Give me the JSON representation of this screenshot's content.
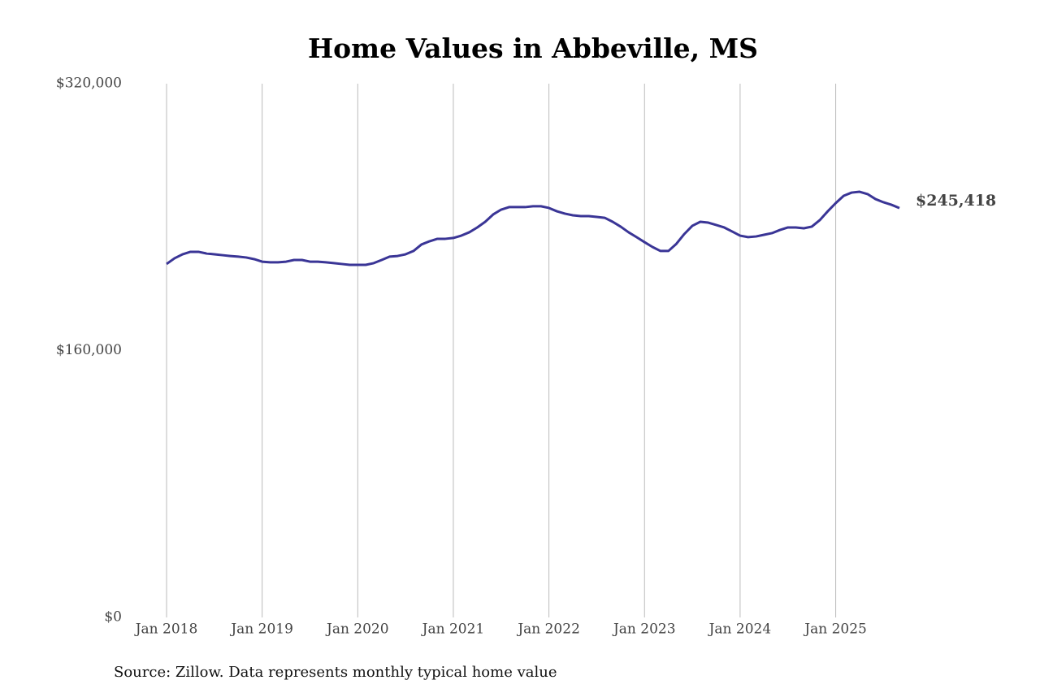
{
  "chart_data": {
    "type": "line",
    "title": "Home Values in Abbeville, MS",
    "source": "Source: Zillow. Data represents monthly typical home value",
    "x": [
      "2018-01",
      "2018-02",
      "2018-03",
      "2018-04",
      "2018-05",
      "2018-06",
      "2018-07",
      "2018-08",
      "2018-09",
      "2018-10",
      "2018-11",
      "2018-12",
      "2019-01",
      "2019-02",
      "2019-03",
      "2019-04",
      "2019-05",
      "2019-06",
      "2019-07",
      "2019-08",
      "2019-09",
      "2019-10",
      "2019-11",
      "2019-12",
      "2020-01",
      "2020-02",
      "2020-03",
      "2020-04",
      "2020-05",
      "2020-06",
      "2020-07",
      "2020-08",
      "2020-09",
      "2020-10",
      "2020-11",
      "2020-12",
      "2021-01",
      "2021-02",
      "2021-03",
      "2021-04",
      "2021-05",
      "2021-06",
      "2021-07",
      "2021-08",
      "2021-09",
      "2021-10",
      "2021-11",
      "2021-12",
      "2022-01",
      "2022-02",
      "2022-03",
      "2022-04",
      "2022-05",
      "2022-06",
      "2022-07",
      "2022-08",
      "2022-09",
      "2022-10",
      "2022-11",
      "2022-12",
      "2023-01",
      "2023-02",
      "2023-03",
      "2023-04",
      "2023-05",
      "2023-06",
      "2023-07",
      "2023-08",
      "2023-09",
      "2023-10",
      "2023-11",
      "2023-12",
      "2024-01",
      "2024-02",
      "2024-03",
      "2024-04",
      "2024-05",
      "2024-06",
      "2024-07",
      "2024-08",
      "2024-09",
      "2024-10",
      "2024-11",
      "2024-12",
      "2025-01",
      "2025-02",
      "2025-03",
      "2025-04",
      "2025-05",
      "2025-06",
      "2025-07",
      "2025-08",
      "2025-09"
    ],
    "series": [
      {
        "name": "Home value",
        "color": "#3a3596",
        "values": [
          211900,
          215300,
          217700,
          219200,
          219200,
          218200,
          217700,
          217200,
          216700,
          216300,
          215800,
          214800,
          213300,
          212900,
          212900,
          213300,
          214300,
          214300,
          213300,
          213300,
          212900,
          212400,
          211900,
          211400,
          211400,
          211400,
          212400,
          214300,
          216300,
          216700,
          217700,
          219700,
          223600,
          225500,
          227000,
          227000,
          227500,
          228900,
          230900,
          233800,
          237200,
          241600,
          244500,
          246000,
          246000,
          246000,
          246500,
          246500,
          245500,
          243500,
          242100,
          241100,
          240600,
          240600,
          240100,
          239600,
          237200,
          234300,
          230900,
          228000,
          225000,
          222100,
          219700,
          219700,
          224000,
          229900,
          234800,
          237200,
          236700,
          235300,
          233800,
          231400,
          228900,
          228000,
          228400,
          229400,
          230400,
          232300,
          233800,
          233800,
          233300,
          234300,
          238200,
          243500,
          248400,
          252800,
          254700,
          255200,
          253800,
          250800,
          248900,
          247400,
          245418
        ],
        "value_labels": [
          null,
          null,
          null,
          null,
          null,
          null,
          null,
          null,
          null,
          null,
          null,
          null,
          null,
          null,
          null,
          null,
          null,
          null,
          null,
          null,
          null,
          null,
          null,
          null,
          null,
          null,
          null,
          null,
          null,
          null,
          null,
          null,
          null,
          null,
          null,
          null,
          null,
          null,
          null,
          null,
          null,
          null,
          null,
          null,
          null,
          null,
          null,
          null,
          null,
          null,
          null,
          null,
          null,
          null,
          null,
          null,
          null,
          null,
          null,
          null,
          null,
          null,
          null,
          null,
          null,
          null,
          null,
          null,
          null,
          null,
          null,
          null,
          null,
          null,
          null,
          null,
          null,
          null,
          null,
          null,
          null,
          null,
          null,
          null,
          null,
          null,
          null,
          null,
          null,
          null,
          null,
          null,
          "$245,418"
        ]
      }
    ],
    "xlim": [
      "2018-01",
      "2025-09"
    ],
    "xticks": [
      {
        "value": "2018-01",
        "label": "Jan 2018"
      },
      {
        "value": "2019-01",
        "label": "Jan 2019"
      },
      {
        "value": "2020-01",
        "label": "Jan 2020"
      },
      {
        "value": "2021-01",
        "label": "Jan 2021"
      },
      {
        "value": "2022-01",
        "label": "Jan 2022"
      },
      {
        "value": "2023-01",
        "label": "Jan 2023"
      },
      {
        "value": "2024-01",
        "label": "Jan 2024"
      },
      {
        "value": "2025-01",
        "label": "Jan 2025"
      }
    ],
    "ylim": [
      0,
      320000
    ],
    "yticks": [
      {
        "value": 0,
        "label": "$0"
      },
      {
        "value": 160000,
        "label": "$160,000"
      },
      {
        "value": 320000,
        "label": "$320,000"
      }
    ],
    "grid": "x"
  }
}
